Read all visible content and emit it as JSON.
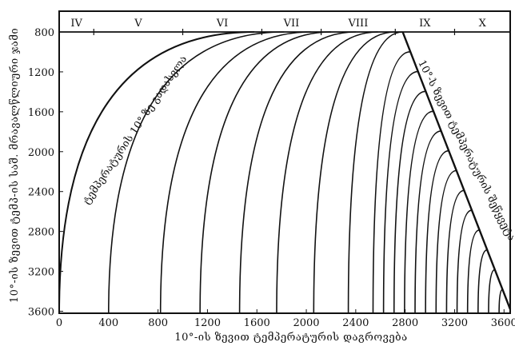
{
  "chart_data": {
    "type": "line",
    "title": "",
    "xlabel": "10°-ის ზევით ტემპერატურის დაგროვება",
    "ylabel": "10°-ის ზევით ტემპ-ის საშ. მრავალწლიური ჯამი",
    "xlim": [
      0,
      3650
    ],
    "ylim": [
      3620,
      800
    ],
    "x_ticks": [
      "0",
      "400",
      "800",
      "1200",
      "1600",
      "2000",
      "2400",
      "2800",
      "3200",
      "3600"
    ],
    "y_ticks": [
      "800",
      "1200",
      "1600",
      "2000",
      "2400",
      "2800",
      "3200",
      "3600"
    ],
    "zones": {
      "labels": [
        "IV",
        "V",
        "VI",
        "VII",
        "VIII",
        "IX",
        "X"
      ],
      "dividers": [
        280,
        1000,
        1640,
        2120,
        2720,
        3200
      ]
    },
    "curve_top_x": [
      1580,
      1820,
      2040,
      2200,
      2400,
      2580,
      2720,
      2780
    ],
    "annotations": [
      "ტემპერატურის 10°-ზე გადასვლა",
      "10°-ს ზევით ტემპერატურის შეწყვეტა"
    ],
    "grid": false,
    "legend": "none"
  }
}
